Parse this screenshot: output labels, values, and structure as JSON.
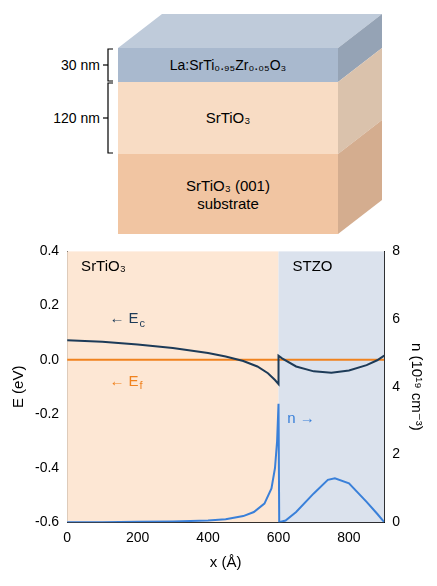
{
  "layer_stack": {
    "layers": [
      {
        "label": "La:SrTi₀.₉₅Zr₀.₀₅O₃",
        "thickness": "30 nm",
        "color": "#a9b9ce"
      },
      {
        "label": "SrTiO₃",
        "thickness": "120 nm",
        "color": "#f8dcc4"
      },
      {
        "label": "SrTiO₃ (001)",
        "sublabel": "substrate",
        "color": "#f1c5a2"
      }
    ]
  },
  "chart_data": {
    "type": "line",
    "x_label": "x (Å)",
    "y_label": "E (eV)",
    "y2_label": "n (10¹⁹ cm⁻³)",
    "xlim": [
      0,
      900
    ],
    "xticks": [
      0,
      200,
      400,
      600,
      800
    ],
    "ylim": [
      -0.6,
      0.4
    ],
    "yticks": [
      -0.6,
      -0.4,
      -0.2,
      {
        "value": 0,
        "label": "0.0"
      },
      0.2,
      0.4
    ],
    "y2lim": [
      0,
      8
    ],
    "y2ticks": [
      0,
      2,
      4,
      6,
      8
    ],
    "grid": false,
    "regions": [
      {
        "label": "SrTiO₃",
        "from": 0,
        "to": 600,
        "color": "#fde7d4"
      },
      {
        "label": "STZO",
        "from": 600,
        "to": 900,
        "color": "#dbe2ed"
      }
    ],
    "series": [
      {
        "name": "Ec",
        "color": "#1d3b58",
        "line_style": "solid",
        "marker": "none",
        "x": [
          0,
          100,
          200,
          300,
          400,
          450,
          500,
          540,
          570,
          590,
          600,
          600,
          610,
          650,
          700,
          750,
          800,
          850,
          880,
          900
        ],
        "values": [
          0.072,
          0.066,
          0.056,
          0.043,
          0.025,
          0.012,
          -0.005,
          -0.025,
          -0.05,
          -0.075,
          -0.09,
          0.015,
          0.005,
          -0.025,
          -0.043,
          -0.048,
          -0.04,
          -0.02,
          -0.002,
          0.015
        ]
      },
      {
        "name": "Ef",
        "color": "#f0821e",
        "line_style": "solid",
        "marker": "none",
        "x": [
          0,
          900
        ],
        "values": [
          0,
          0
        ]
      },
      {
        "name": "n",
        "color": "#3a80d9",
        "line_style": "solid",
        "marker": "none",
        "axis": "y2",
        "x": [
          0,
          100,
          200,
          300,
          400,
          450,
          500,
          530,
          560,
          580,
          590,
          596,
          600,
          602,
          620,
          650,
          700,
          740,
          760,
          800,
          850,
          880,
          900
        ],
        "values": [
          0,
          0,
          0.01,
          0.02,
          0.05,
          0.09,
          0.18,
          0.3,
          0.55,
          1.0,
          1.6,
          2.4,
          3.5,
          0,
          0.05,
          0.3,
          0.85,
          1.25,
          1.3,
          1.15,
          0.6,
          0.25,
          0
        ]
      }
    ],
    "annotations": [
      {
        "text": "← E",
        "sub": "c",
        "x": 120,
        "y": 0.15,
        "color": "#1d3b58"
      },
      {
        "text": "← E",
        "sub": "f",
        "x": 120,
        "y": -0.08,
        "color": "#f0821e"
      },
      {
        "text": "n →",
        "x": 625,
        "y": -0.22,
        "color": "#3a80d9"
      }
    ]
  }
}
